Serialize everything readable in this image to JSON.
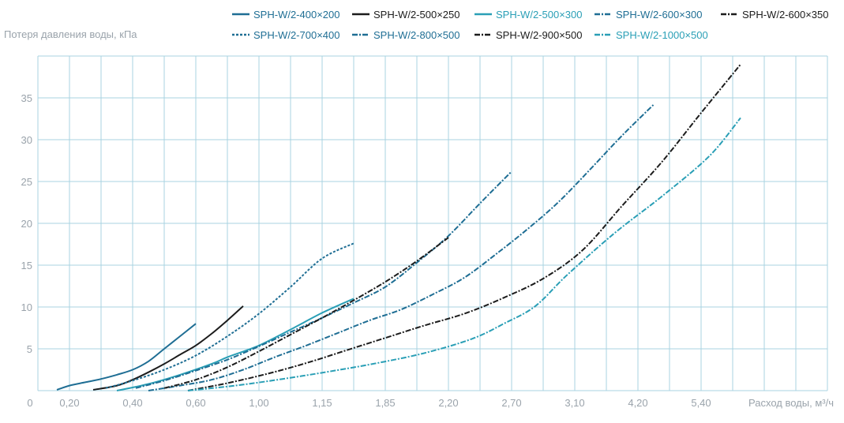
{
  "chart_data": {
    "type": "line",
    "title": "",
    "ylabel": "Потеря давления воды, кПа",
    "xlabel": "Расход воды, м³/ч",
    "y_origin_label": "0",
    "x_ticks": [
      "0,20",
      "0,40",
      "0,60",
      "1,00",
      "1,15",
      "1,85",
      "2,20",
      "2,70",
      "3,10",
      "4,20",
      "5,40"
    ],
    "y_ticks": [
      "5",
      "10",
      "15",
      "20",
      "25",
      "30",
      "35"
    ],
    "ylim": [
      0,
      38
    ],
    "grid": true,
    "legend_position": "top-right",
    "series": [
      {
        "name": "SPH-W/2-400×200",
        "color": "#1f6e94",
        "style": "solid",
        "points": [
          [
            0.12,
            0.1
          ],
          [
            0.2,
            0.6
          ],
          [
            0.3,
            1.0
          ],
          [
            0.4,
            1.4
          ],
          [
            0.5,
            1.9
          ],
          [
            0.6,
            2.5
          ],
          [
            0.7,
            3.5
          ],
          [
            0.8,
            5.0
          ],
          [
            0.9,
            6.5
          ],
          [
            1.0,
            8.0
          ]
        ]
      },
      {
        "name": "SPH-W/2-500×250",
        "color": "#1c1c1c",
        "style": "solid",
        "points": [
          [
            0.35,
            0.1
          ],
          [
            0.5,
            0.6
          ],
          [
            0.6,
            1.3
          ],
          [
            0.7,
            2.2
          ],
          [
            0.8,
            3.2
          ],
          [
            0.9,
            4.3
          ],
          [
            1.0,
            5.4
          ],
          [
            1.1,
            6.8
          ],
          [
            1.2,
            8.4
          ],
          [
            1.3,
            10.1
          ]
        ]
      },
      {
        "name": "SPH-W/2-500×300",
        "color": "#2a9fb6",
        "style": "solid",
        "points": [
          [
            0.5,
            0.0
          ],
          [
            0.7,
            0.8
          ],
          [
            0.9,
            1.9
          ],
          [
            1.1,
            3.2
          ],
          [
            1.2,
            4.0
          ],
          [
            1.4,
            5.4
          ],
          [
            1.6,
            7.3
          ],
          [
            1.8,
            9.3
          ],
          [
            2.0,
            11.0
          ]
        ]
      },
      {
        "name": "SPH-W/2-600×300",
        "color": "#1f6e94",
        "style": "dashdot",
        "points": [
          [
            0.7,
            0.0
          ],
          [
            0.9,
            0.6
          ],
          [
            1.1,
            1.3
          ],
          [
            1.3,
            2.5
          ],
          [
            1.5,
            4.0
          ],
          [
            1.7,
            5.4
          ],
          [
            1.9,
            6.9
          ],
          [
            2.1,
            8.4
          ],
          [
            2.3,
            9.7
          ],
          [
            2.5,
            11.5
          ],
          [
            2.7,
            13.5
          ],
          [
            2.9,
            16.3
          ],
          [
            3.1,
            19.3
          ],
          [
            3.3,
            22.6
          ],
          [
            3.5,
            26.5
          ],
          [
            3.7,
            30.5
          ],
          [
            3.9,
            34.2
          ]
        ]
      },
      {
        "name": "SPH-W/2-600×350",
        "color": "#1c1c1c",
        "style": "dashdot",
        "points": [
          [
            0.95,
            0.0
          ],
          [
            1.2,
            0.9
          ],
          [
            1.45,
            2.0
          ],
          [
            1.7,
            3.3
          ],
          [
            1.95,
            4.8
          ],
          [
            2.2,
            6.3
          ],
          [
            2.45,
            7.8
          ],
          [
            2.7,
            9.2
          ],
          [
            2.95,
            11.1
          ],
          [
            3.2,
            13.4
          ],
          [
            3.45,
            16.8
          ],
          [
            3.7,
            22.1
          ],
          [
            3.95,
            27.3
          ],
          [
            4.2,
            33.2
          ],
          [
            4.45,
            39.0
          ]
        ]
      },
      {
        "name": "SPH-W/2-700×400",
        "color": "#1f6e94",
        "style": "dotted",
        "points": [
          [
            0.43,
            0.3
          ],
          [
            0.6,
            1.2
          ],
          [
            0.8,
            2.5
          ],
          [
            1.0,
            4.2
          ],
          [
            1.2,
            6.5
          ],
          [
            1.4,
            9.2
          ],
          [
            1.6,
            12.4
          ],
          [
            1.8,
            15.8
          ],
          [
            2.0,
            17.6
          ]
        ]
      },
      {
        "name": "SPH-W/2-800×500",
        "color": "#1f6e94",
        "style": "dashdot",
        "points": [
          [
            0.62,
            0.3
          ],
          [
            0.8,
            1.2
          ],
          [
            1.0,
            2.4
          ],
          [
            1.2,
            3.7
          ],
          [
            1.4,
            5.3
          ],
          [
            1.6,
            7.0
          ],
          [
            1.8,
            8.7
          ],
          [
            2.0,
            10.5
          ],
          [
            2.2,
            12.4
          ],
          [
            2.4,
            15.3
          ],
          [
            2.6,
            18.5
          ],
          [
            2.8,
            22.4
          ],
          [
            3.0,
            26.2
          ]
        ]
      },
      {
        "name": "SPH-W/2-900×500",
        "color": "#1c1c1c",
        "style": "dashdot",
        "points": [
          [
            0.8,
            0.3
          ],
          [
            1.0,
            1.3
          ],
          [
            1.2,
            2.8
          ],
          [
            1.4,
            4.7
          ],
          [
            1.6,
            6.7
          ],
          [
            1.8,
            8.7
          ],
          [
            2.0,
            10.8
          ],
          [
            2.2,
            13.0
          ],
          [
            2.4,
            15.5
          ],
          [
            2.6,
            18.3
          ]
        ]
      },
      {
        "name": "SPH-W/2-1000×500",
        "color": "#2a9fb6",
        "style": "dashdot",
        "points": [
          [
            0.95,
            0.0
          ],
          [
            1.25,
            0.6
          ],
          [
            1.55,
            1.4
          ],
          [
            1.85,
            2.3
          ],
          [
            2.15,
            3.3
          ],
          [
            2.45,
            4.5
          ],
          [
            2.75,
            6.2
          ],
          [
            2.95,
            8.0
          ],
          [
            3.15,
            10.1
          ],
          [
            3.35,
            13.8
          ],
          [
            3.65,
            18.8
          ],
          [
            3.95,
            23.2
          ],
          [
            4.25,
            28.0
          ],
          [
            4.45,
            32.6
          ]
        ]
      }
    ]
  }
}
